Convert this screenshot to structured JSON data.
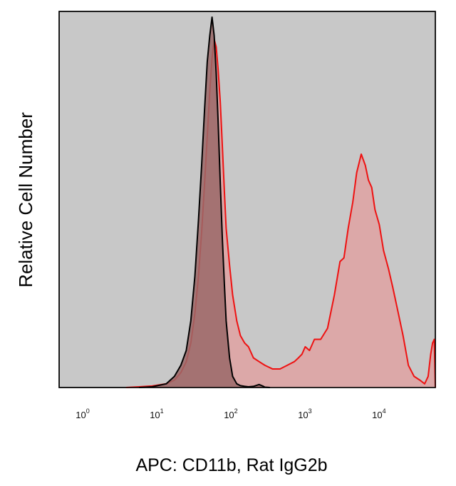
{
  "chart_data": {
    "type": "area",
    "xlabel": "APC: CD11b, Rat IgG2b",
    "ylabel": "Relative Cell Number",
    "xscale": "log",
    "xlim": [
      0.5,
      60000
    ],
    "ylim": [
      0,
      1
    ],
    "grid": false,
    "x_ticks": [
      {
        "base": "10",
        "exp": "0",
        "value": 1
      },
      {
        "base": "10",
        "exp": "1",
        "value": 10
      },
      {
        "base": "10",
        "exp": "2",
        "value": 100
      },
      {
        "base": "10",
        "exp": "3",
        "value": 1000
      },
      {
        "base": "10",
        "exp": "4",
        "value": 10000
      }
    ],
    "colors": {
      "plot_background": "#c8c8c8",
      "cd11b_line": "#ee1111",
      "cd11b_fill": "#dca8a8",
      "isotype_line": "#000000",
      "isotype_fill": "#9a6868"
    },
    "series": [
      {
        "key": "cd11b",
        "x": [
          4,
          6,
          9,
          14,
          18,
          22,
          26,
          30,
          34,
          38,
          42,
          46,
          50,
          54,
          58,
          62,
          66,
          70,
          75,
          80,
          85,
          90,
          100,
          110,
          125,
          140,
          160,
          180,
          210,
          250,
          300,
          380,
          480,
          600,
          750,
          850,
          950,
          1050,
          1200,
          1400,
          1700,
          2100,
          2600,
          3100,
          3500,
          4000,
          4600,
          5200,
          6000,
          6800,
          7500,
          8300,
          9200,
          10500,
          12000,
          14000,
          16000,
          19000,
          22000,
          26000,
          31000,
          37000,
          43000,
          48000,
          52000,
          55000,
          58000,
          60000
        ],
        "y": [
          0.0,
          0.002,
          0.004,
          0.01,
          0.02,
          0.04,
          0.07,
          0.12,
          0.2,
          0.3,
          0.42,
          0.55,
          0.68,
          0.8,
          0.89,
          0.94,
          0.92,
          0.86,
          0.77,
          0.65,
          0.53,
          0.43,
          0.33,
          0.25,
          0.18,
          0.14,
          0.12,
          0.11,
          0.08,
          0.07,
          0.06,
          0.05,
          0.05,
          0.06,
          0.07,
          0.08,
          0.09,
          0.11,
          0.1,
          0.13,
          0.13,
          0.16,
          0.25,
          0.34,
          0.35,
          0.43,
          0.5,
          0.58,
          0.63,
          0.6,
          0.56,
          0.54,
          0.48,
          0.44,
          0.37,
          0.32,
          0.27,
          0.2,
          0.14,
          0.06,
          0.03,
          0.02,
          0.01,
          0.03,
          0.09,
          0.12,
          0.13,
          0.0
        ]
      },
      {
        "key": "isotype",
        "x": [
          6,
          9,
          14,
          18,
          22,
          26,
          30,
          34,
          38,
          42,
          46,
          50,
          54,
          58,
          62,
          66,
          70,
          75,
          80,
          85,
          90,
          100,
          110,
          125,
          140,
          160,
          180,
          210,
          250,
          280,
          300,
          350
        ],
        "y": [
          0.0,
          0.002,
          0.01,
          0.03,
          0.06,
          0.1,
          0.18,
          0.3,
          0.45,
          0.6,
          0.75,
          0.88,
          0.95,
          1.0,
          0.95,
          0.85,
          0.72,
          0.55,
          0.4,
          0.28,
          0.18,
          0.08,
          0.03,
          0.01,
          0.005,
          0.003,
          0.002,
          0.003,
          0.008,
          0.004,
          0.001,
          0.0
        ]
      }
    ]
  }
}
